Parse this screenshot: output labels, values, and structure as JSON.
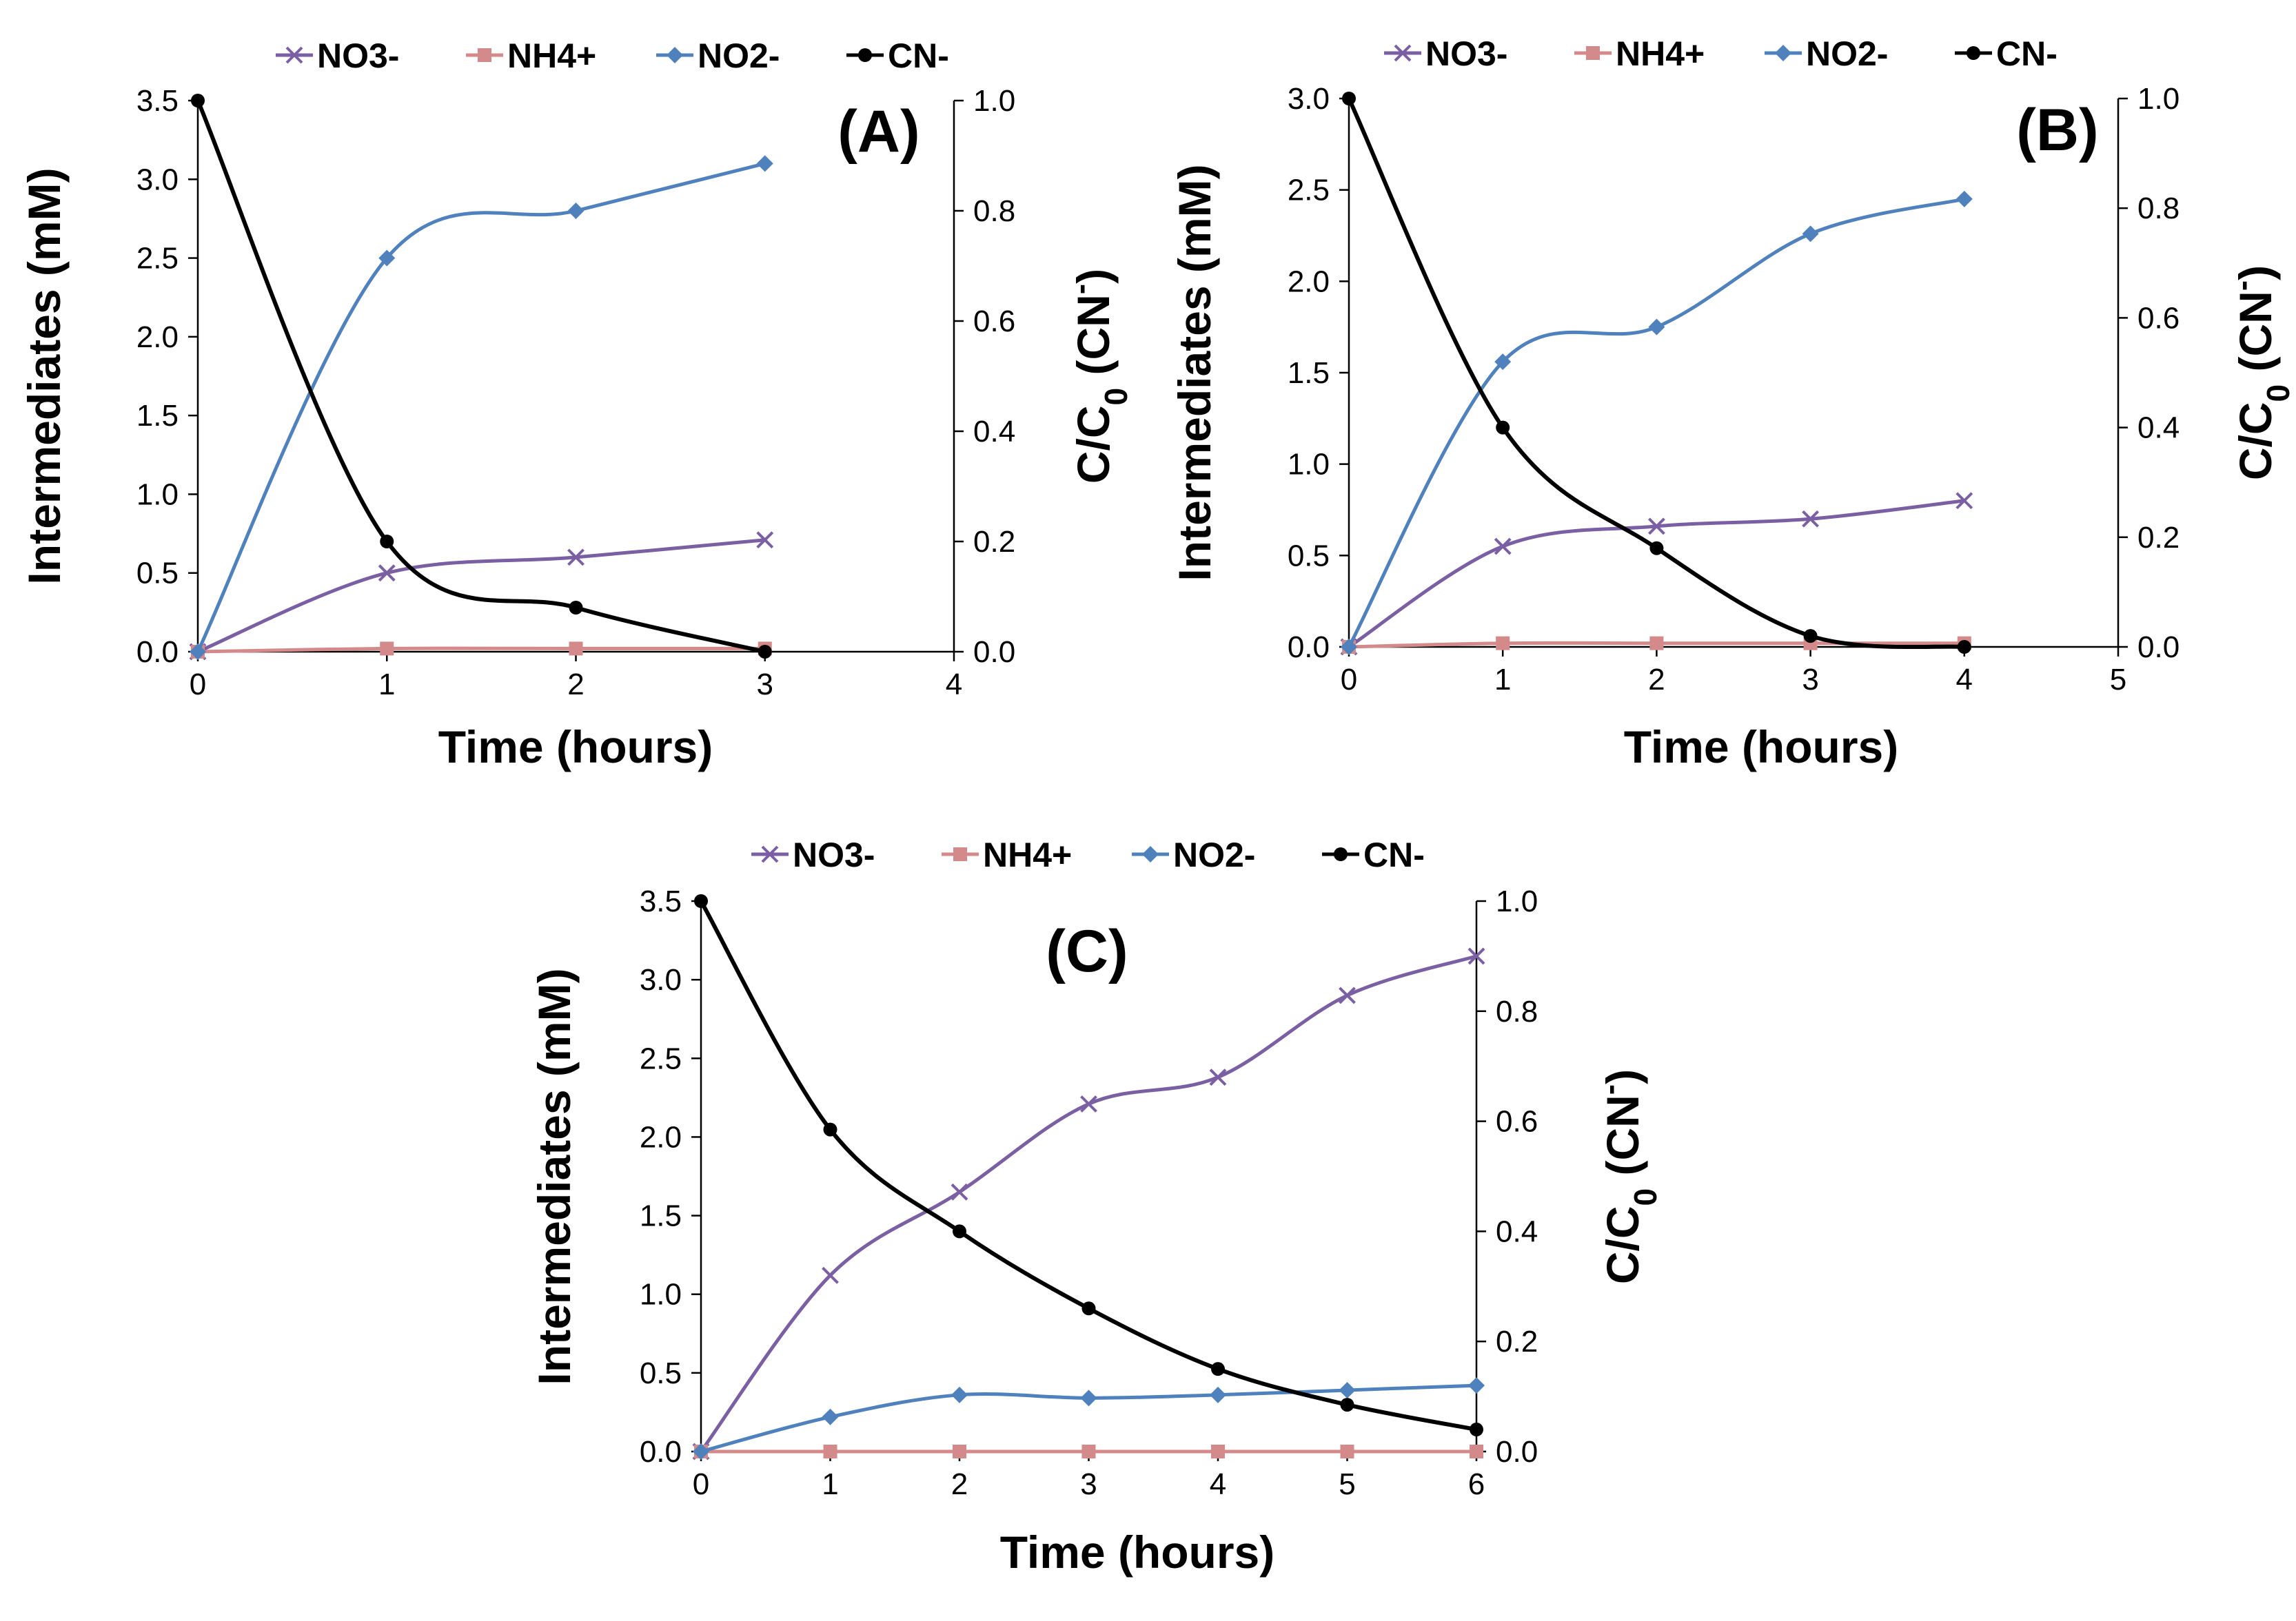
{
  "chart_data": [
    {
      "type": "line",
      "panel": "(A)",
      "xlabel": "Time (hours)",
      "ylabel": "Intermediates (mM)",
      "y2label_main": "C/C",
      "y2label_sub": "0",
      "y2label_rest": " (CN",
      "y2label_sup": "-",
      "y2label_end": ")",
      "xlim": [
        0,
        4
      ],
      "ylim": [
        0,
        3.5
      ],
      "y2lim": [
        0,
        1.0
      ],
      "x_ticks": [
        "0",
        "1",
        "2",
        "3",
        "4"
      ],
      "y_ticks": [
        "0.0",
        "0.5",
        "1.0",
        "1.5",
        "2.0",
        "2.5",
        "3.0",
        "3.5"
      ],
      "y2_ticks": [
        "0.0",
        "0.2",
        "0.4",
        "0.6",
        "0.8",
        "1.0"
      ],
      "legend": [
        "NO3-",
        "NH4+",
        "NO2-",
        "CN-"
      ],
      "series": [
        {
          "name": "NO3-",
          "axis": "left",
          "color": "#7b5fa3",
          "marker": "x",
          "x": [
            0,
            1,
            2,
            3
          ],
          "values": [
            0.0,
            0.5,
            0.6,
            0.71
          ]
        },
        {
          "name": "NH4+",
          "axis": "left",
          "color": "#d48a8a",
          "marker": "square",
          "x": [
            0,
            1,
            2,
            3
          ],
          "values": [
            0.0,
            0.02,
            0.02,
            0.02
          ]
        },
        {
          "name": "NO2-",
          "axis": "left",
          "color": "#4f81bd",
          "marker": "diamond",
          "x": [
            0,
            1,
            2,
            3
          ],
          "values": [
            0.0,
            2.5,
            2.8,
            3.1
          ]
        },
        {
          "name": "CN-",
          "axis": "right",
          "color": "#000000",
          "marker": "circle",
          "x": [
            0,
            1,
            2,
            3
          ],
          "values": [
            1.0,
            0.2,
            0.08,
            0.0
          ]
        }
      ]
    },
    {
      "type": "line",
      "panel": "(B)",
      "xlabel": "Time (hours)",
      "ylabel": "Intermediates (mM)",
      "y2label_main": "C/C",
      "y2label_sub": "0",
      "y2label_rest": " (CN",
      "y2label_sup": "-",
      "y2label_end": ")",
      "xlim": [
        0,
        5
      ],
      "ylim": [
        0,
        3.0
      ],
      "y2lim": [
        0,
        1.0
      ],
      "x_ticks": [
        "0",
        "1",
        "2",
        "3",
        "4",
        "5"
      ],
      "y_ticks": [
        "0.0",
        "0.5",
        "1.0",
        "1.5",
        "2.0",
        "2.5",
        "3.0"
      ],
      "y2_ticks": [
        "0.0",
        "0.2",
        "0.4",
        "0.6",
        "0.8",
        "1.0"
      ],
      "legend": [
        "NO3-",
        "NH4+",
        "NO2-",
        "CN-"
      ],
      "series": [
        {
          "name": "NO3-",
          "axis": "left",
          "color": "#7b5fa3",
          "marker": "x",
          "x": [
            0,
            1,
            2,
            3,
            4
          ],
          "values": [
            0.0,
            0.55,
            0.66,
            0.7,
            0.8
          ]
        },
        {
          "name": "NH4+",
          "axis": "left",
          "color": "#d48a8a",
          "marker": "square",
          "x": [
            0,
            1,
            2,
            3,
            4
          ],
          "values": [
            0.0,
            0.02,
            0.02,
            0.02,
            0.02
          ]
        },
        {
          "name": "NO2-",
          "axis": "left",
          "color": "#4f81bd",
          "marker": "diamond",
          "x": [
            0,
            1,
            2,
            3,
            4
          ],
          "values": [
            0.0,
            1.56,
            1.75,
            2.26,
            2.45
          ]
        },
        {
          "name": "CN-",
          "axis": "right",
          "color": "#000000",
          "marker": "circle",
          "x": [
            0,
            1,
            2,
            3,
            4
          ],
          "values": [
            1.0,
            0.4,
            0.18,
            0.02,
            0.0
          ]
        }
      ]
    },
    {
      "type": "line",
      "panel": "(C)",
      "xlabel": "Time (hours)",
      "ylabel": "Intermediates (mM)",
      "y2label_main": "C/C",
      "y2label_sub": "0",
      "y2label_rest": " (CN",
      "y2label_sup": "-",
      "y2label_end": ")",
      "xlim": [
        0,
        6
      ],
      "ylim": [
        0,
        3.5
      ],
      "y2lim": [
        0,
        1.0
      ],
      "x_ticks": [
        "0",
        "1",
        "2",
        "3",
        "4",
        "5",
        "6"
      ],
      "y_ticks": [
        "0.0",
        "0.5",
        "1.0",
        "1.5",
        "2.0",
        "2.5",
        "3.0",
        "3.5"
      ],
      "y2_ticks": [
        "0.0",
        "0.2",
        "0.4",
        "0.6",
        "0.8",
        "1.0"
      ],
      "legend": [
        "NO3-",
        "NH4+",
        "NO2-",
        "CN-"
      ],
      "series": [
        {
          "name": "NO3-",
          "axis": "left",
          "color": "#7b5fa3",
          "marker": "x",
          "x": [
            0,
            1,
            2,
            3,
            4,
            5,
            6
          ],
          "values": [
            0.0,
            1.12,
            1.65,
            2.21,
            2.38,
            2.9,
            3.15
          ]
        },
        {
          "name": "NH4+",
          "axis": "left",
          "color": "#d48a8a",
          "marker": "square",
          "x": [
            0,
            1,
            2,
            3,
            4,
            5,
            6
          ],
          "values": [
            0.0,
            0.0,
            0.0,
            0.0,
            0.0,
            0.0,
            0.0
          ]
        },
        {
          "name": "NO2-",
          "axis": "left",
          "color": "#4f81bd",
          "marker": "diamond",
          "x": [
            0,
            1,
            2,
            3,
            4,
            5,
            6
          ],
          "values": [
            0.0,
            0.22,
            0.36,
            0.34,
            0.36,
            0.39,
            0.42
          ]
        },
        {
          "name": "CN-",
          "axis": "right",
          "color": "#000000",
          "marker": "circle",
          "x": [
            0,
            1,
            2,
            3,
            4,
            5,
            6
          ],
          "values": [
            1.0,
            0.585,
            0.4,
            0.26,
            0.15,
            0.085,
            0.04
          ]
        }
      ]
    }
  ]
}
